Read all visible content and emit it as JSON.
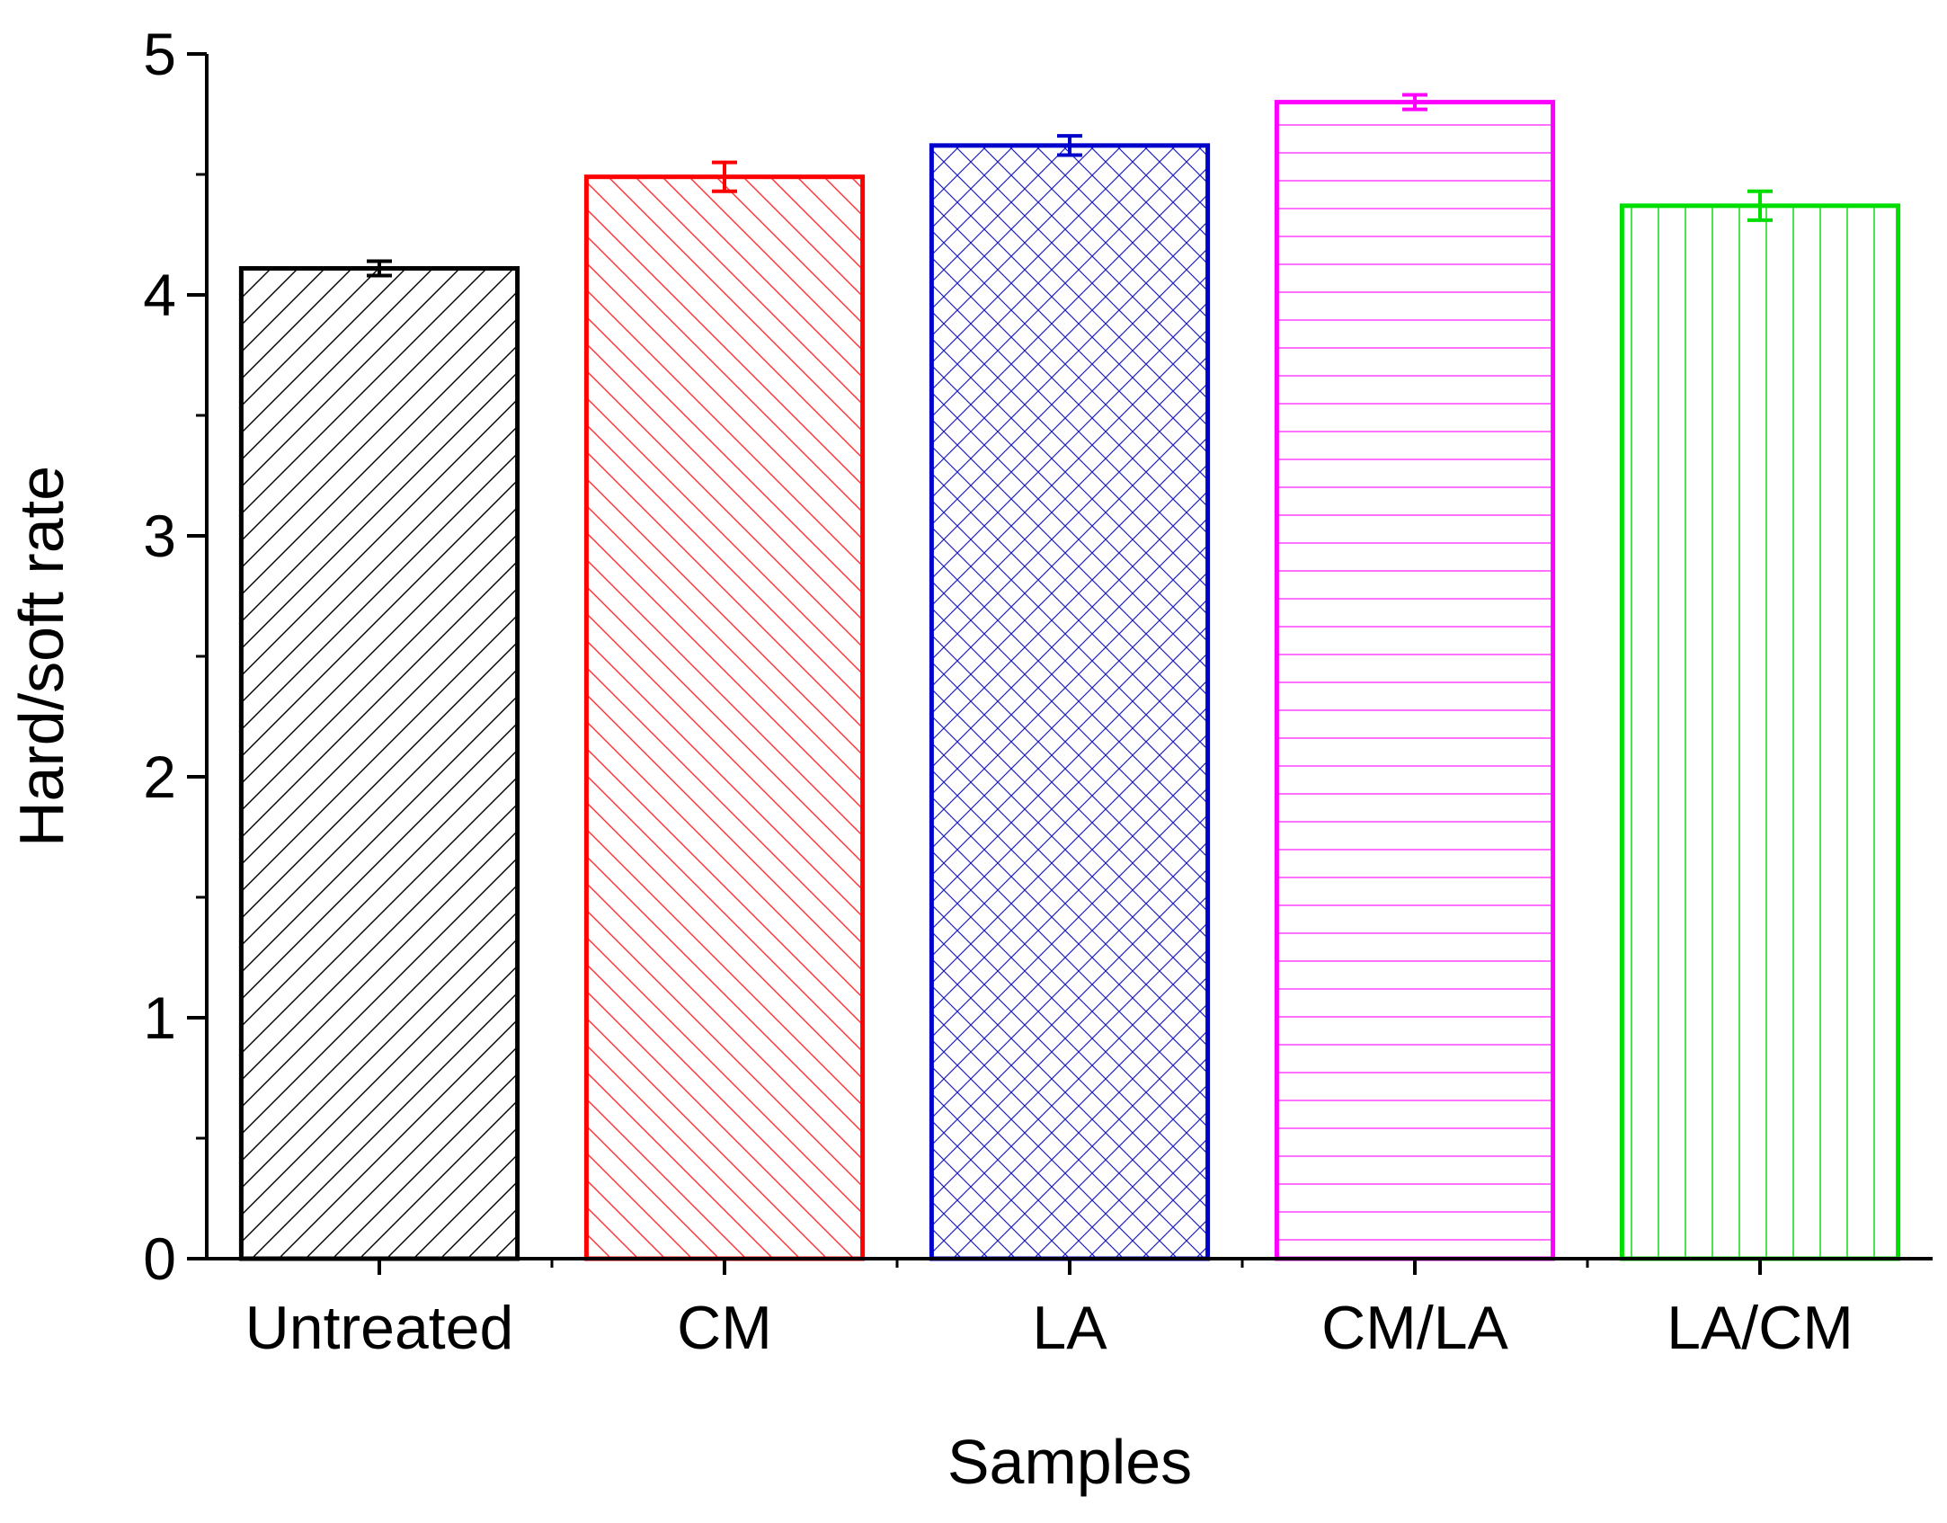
{
  "chart_data": {
    "type": "bar",
    "title": "",
    "xlabel": "Samples",
    "ylabel": "Hard/soft rate",
    "ylim": [
      0,
      5
    ],
    "yticks": [
      "0",
      "1",
      "2",
      "3",
      "4",
      "5"
    ],
    "grid": false,
    "legend": "none",
    "categories": [
      "Untreated",
      "CM",
      "LA",
      "CM/LA",
      "LA/CM"
    ],
    "values": [
      4.11,
      4.49,
      4.62,
      4.8,
      4.37
    ],
    "errors": [
      0.03,
      0.06,
      0.04,
      0.03,
      0.06
    ],
    "colors": [
      "#000000",
      "#ff0000",
      "#0000cc",
      "#ff00ff",
      "#00dd00"
    ],
    "patterns": [
      "diagonal-up",
      "diagonal-down",
      "crosshatch",
      "horizontal",
      "vertical"
    ]
  }
}
